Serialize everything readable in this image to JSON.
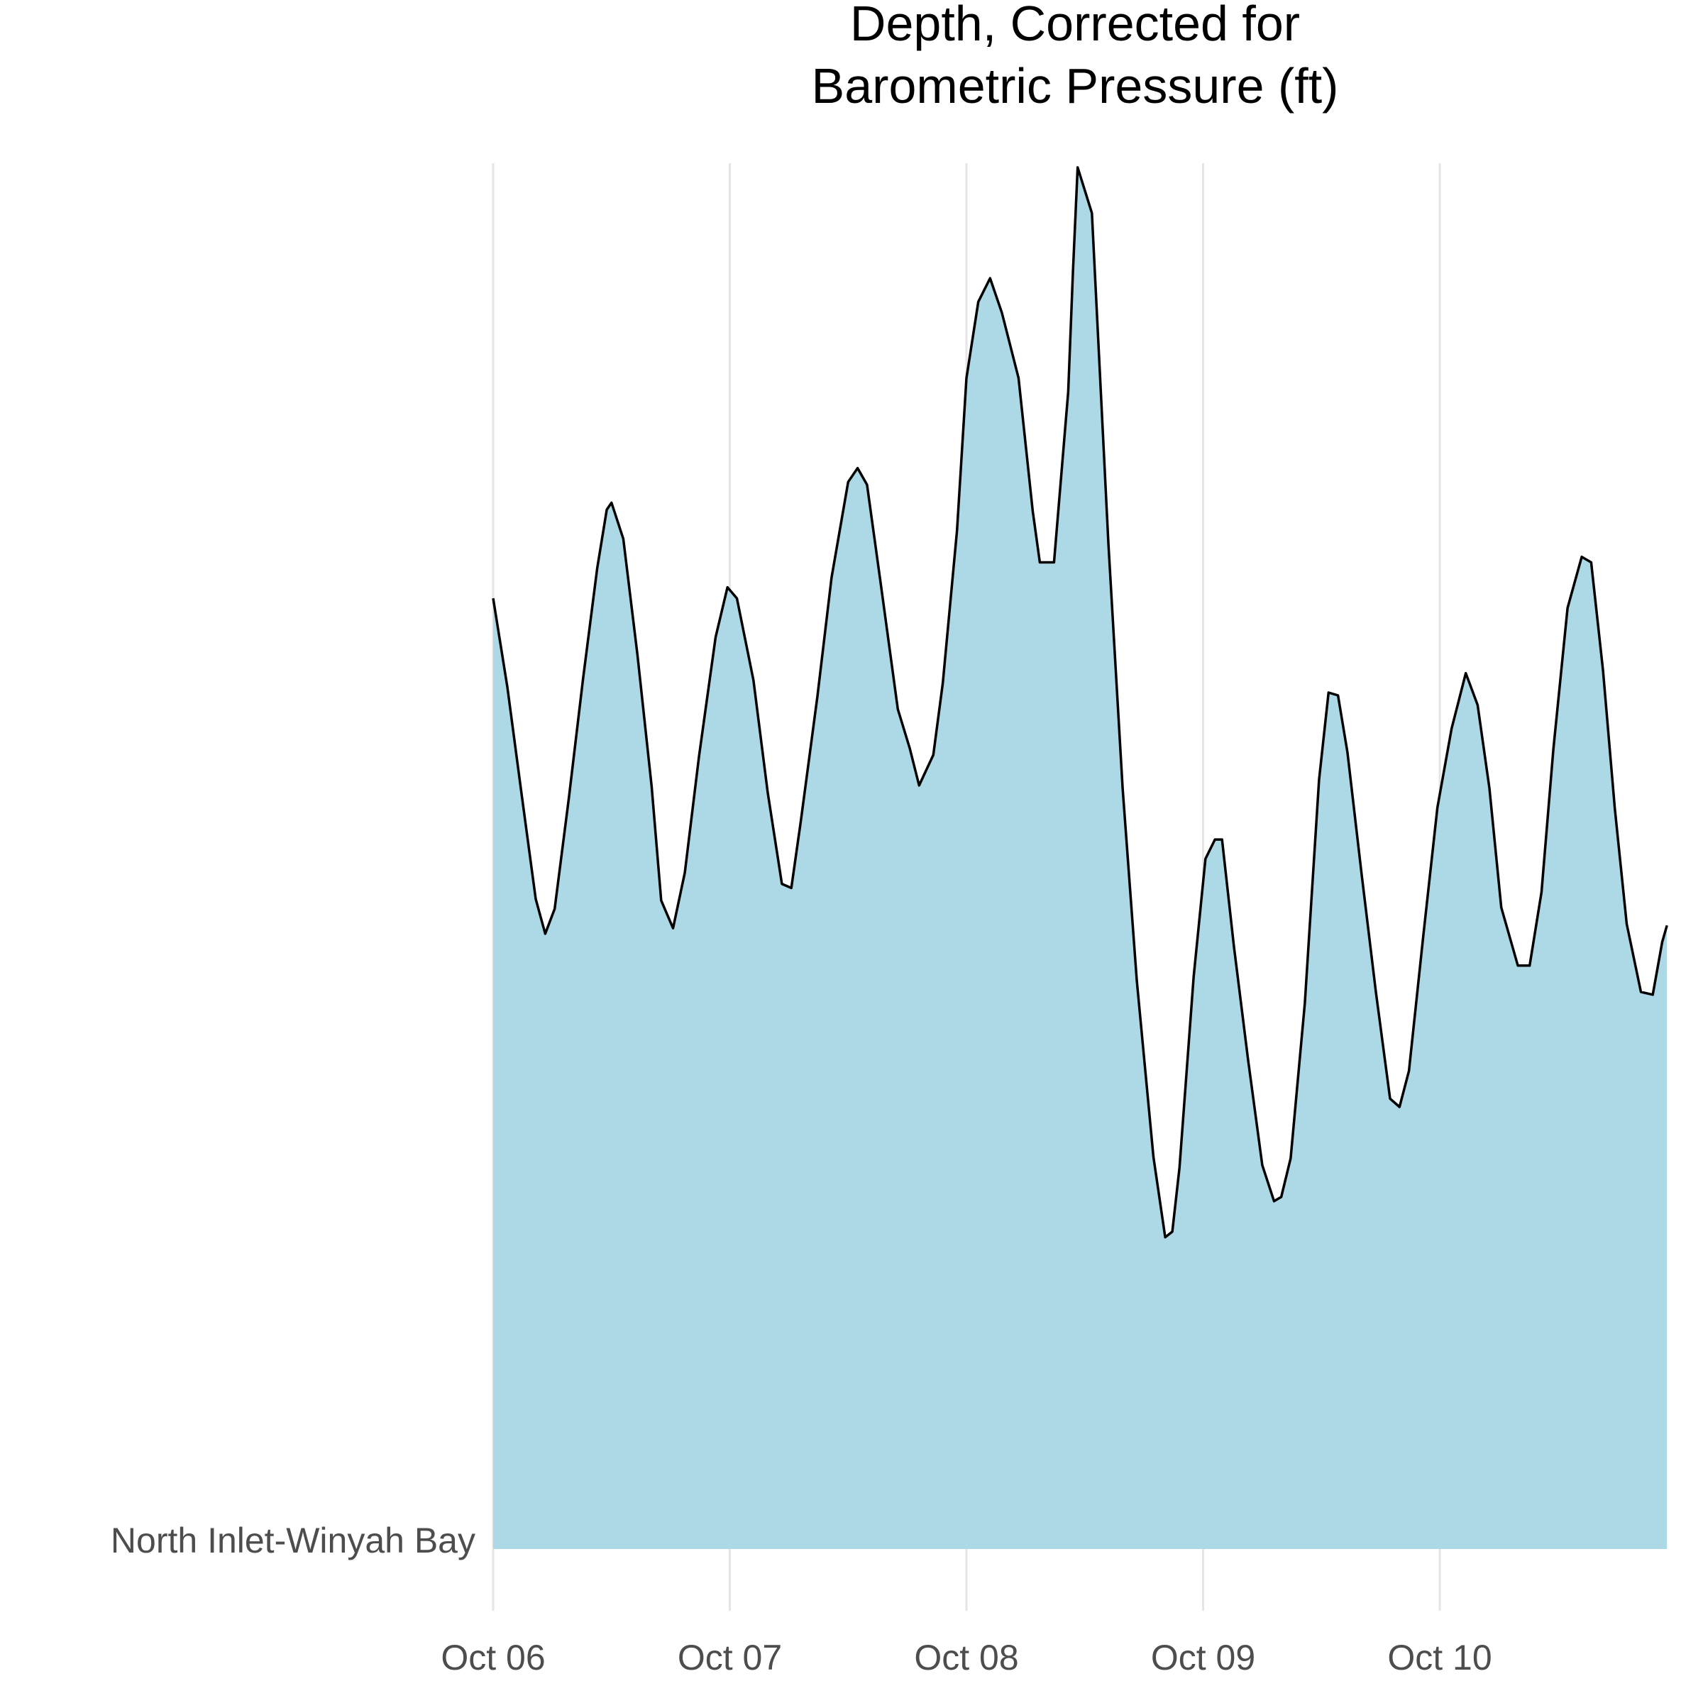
{
  "chart_data": {
    "type": "area",
    "title_lines": [
      "Depth, Corrected for",
      "Barometric Pressure (ft)"
    ],
    "xlabel": "",
    "ylabel": "",
    "x_tick_labels": [
      "Oct 06",
      "Oct 07",
      "Oct 08",
      "Oct 09",
      "Oct 10"
    ],
    "y_tick_labels": [
      "North Inlet-Winyah Bay"
    ],
    "grid": {
      "x_major": true,
      "y": false
    },
    "legend": "none",
    "colors": {
      "fill": "#add8e6",
      "line": "#000000",
      "grid": "#e5e5e5"
    },
    "x_unit": "days since Oct 06 00:00",
    "xlim": [
      0,
      4.96
    ],
    "ylim": [
      0,
      1.0
    ],
    "series": [
      {
        "category": "North Inlet-Winyah Bay",
        "x": [
          0.0,
          0.06,
          0.12,
          0.18,
          0.22,
          0.26,
          0.32,
          0.38,
          0.44,
          0.48,
          0.5,
          0.55,
          0.61,
          0.67,
          0.71,
          0.76,
          0.81,
          0.87,
          0.94,
          0.99,
          1.03,
          1.1,
          1.16,
          1.22,
          1.26,
          1.3,
          1.37,
          1.43,
          1.5,
          1.54,
          1.58,
          1.64,
          1.71,
          1.76,
          1.8,
          1.86,
          1.9,
          1.96,
          2.0,
          2.05,
          2.1,
          2.15,
          2.22,
          2.28,
          2.31,
          2.37,
          2.43,
          2.45,
          2.47,
          2.53,
          2.6,
          2.66,
          2.72,
          2.79,
          2.84,
          2.87,
          2.9,
          2.96,
          3.01,
          3.05,
          3.08,
          3.13,
          3.19,
          3.25,
          3.3,
          3.33,
          3.37,
          3.43,
          3.49,
          3.53,
          3.57,
          3.61,
          3.67,
          3.73,
          3.79,
          3.83,
          3.87,
          3.93,
          3.99,
          4.05,
          4.11,
          4.16,
          4.21,
          4.26,
          4.33,
          4.38,
          4.43,
          4.48,
          4.54,
          4.6,
          4.64,
          4.69,
          4.74,
          4.79,
          4.85,
          4.9,
          4.94,
          4.96
        ],
        "y": [
          0.686,
          0.622,
          0.545,
          0.469,
          0.444,
          0.462,
          0.542,
          0.628,
          0.708,
          0.75,
          0.755,
          0.729,
          0.645,
          0.55,
          0.468,
          0.448,
          0.488,
          0.572,
          0.658,
          0.694,
          0.686,
          0.627,
          0.546,
          0.48,
          0.477,
          0.525,
          0.615,
          0.701,
          0.77,
          0.78,
          0.768,
          0.694,
          0.606,
          0.578,
          0.551,
          0.573,
          0.625,
          0.735,
          0.845,
          0.9,
          0.917,
          0.892,
          0.845,
          0.749,
          0.712,
          0.712,
          0.835,
          0.922,
          0.997,
          0.964,
          0.725,
          0.549,
          0.41,
          0.283,
          0.225,
          0.229,
          0.275,
          0.413,
          0.498,
          0.512,
          0.512,
          0.435,
          0.353,
          0.277,
          0.251,
          0.254,
          0.282,
          0.394,
          0.555,
          0.618,
          0.616,
          0.575,
          0.487,
          0.402,
          0.325,
          0.319,
          0.345,
          0.442,
          0.535,
          0.592,
          0.632,
          0.609,
          0.549,
          0.463,
          0.421,
          0.421,
          0.474,
          0.577,
          0.679,
          0.716,
          0.712,
          0.634,
          0.534,
          0.451,
          0.402,
          0.4,
          0.438,
          0.45
        ]
      }
    ]
  }
}
